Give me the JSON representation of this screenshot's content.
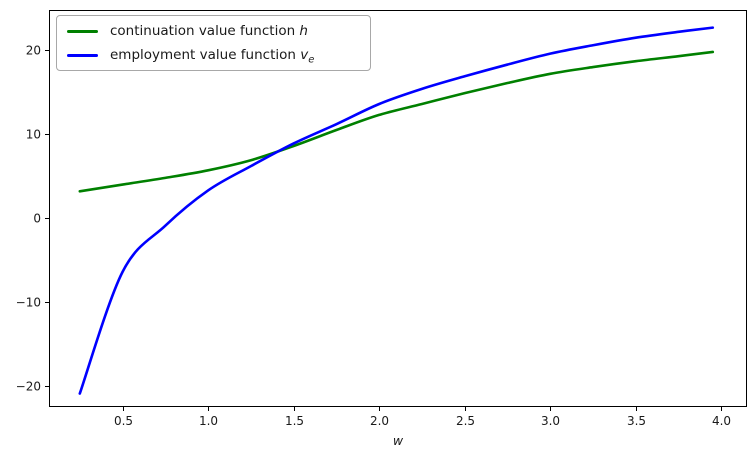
{
  "chart_data": {
    "type": "line",
    "title": "",
    "xlabel": "w",
    "ylabel": "",
    "grid": false,
    "legend_position": "upper left",
    "background_color": "#ffffff",
    "axis_color": "#000000",
    "xlim": [
      0.07,
      4.15
    ],
    "ylim": [
      -22.5,
      24.8
    ],
    "xticks": {
      "values": [
        0.5,
        1.0,
        1.5,
        2.0,
        2.5,
        3.0,
        3.5,
        4.0
      ],
      "labels": [
        "0.5",
        "1.0",
        "1.5",
        "2.0",
        "2.5",
        "3.0",
        "3.5",
        "4.0"
      ]
    },
    "yticks": {
      "values": [
        -20,
        -10,
        0,
        10,
        20
      ],
      "labels": [
        "−20",
        "−10",
        "0",
        "10",
        "20"
      ]
    },
    "x": [
      0.25,
      0.5,
      0.75,
      1.0,
      1.25,
      1.5,
      1.75,
      2.0,
      2.25,
      2.5,
      2.75,
      3.0,
      3.25,
      3.5,
      3.75,
      3.95
    ],
    "series": [
      {
        "name": "continuation value function h",
        "label_prefix": "continuation value function ",
        "label_math": "h",
        "label_sub": "",
        "color": "#008000",
        "values": [
          3.2,
          4.0,
          4.8,
          5.7,
          6.9,
          8.6,
          10.5,
          12.3,
          13.6,
          14.9,
          16.1,
          17.2,
          18.0,
          18.7,
          19.3,
          19.8
        ]
      },
      {
        "name": "employment value function v_e",
        "label_prefix": "employment value function ",
        "label_math": "v",
        "label_sub": "e",
        "color": "#0000ff",
        "values": [
          -20.9,
          -6.4,
          -0.9,
          3.3,
          6.2,
          8.9,
          11.2,
          13.6,
          15.4,
          16.9,
          18.3,
          19.6,
          20.6,
          21.5,
          22.2,
          22.7
        ]
      }
    ]
  }
}
